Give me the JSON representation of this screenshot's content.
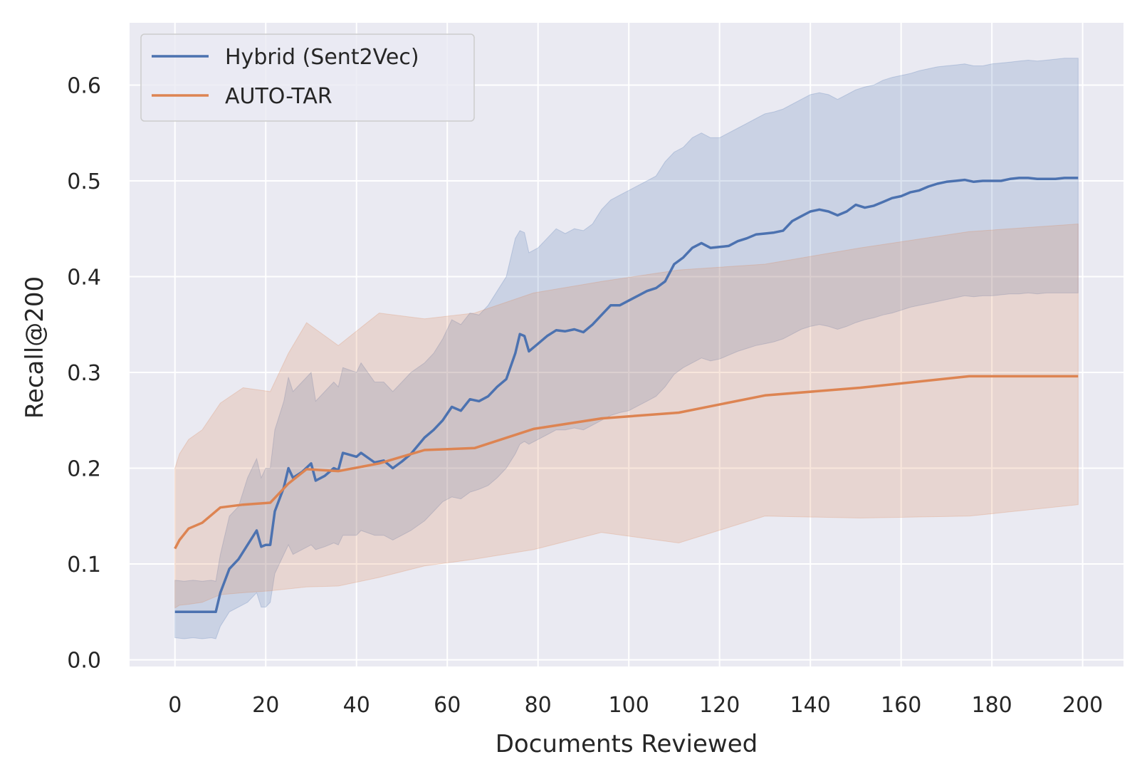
{
  "chart_data": {
    "type": "line",
    "title": "",
    "xlabel": "Documents Reviewed",
    "ylabel": "Recall@200",
    "xlim": [
      -10,
      209
    ],
    "ylim": [
      -0.007,
      0.665
    ],
    "x_ticks": [
      0,
      20,
      40,
      60,
      80,
      100,
      120,
      140,
      160,
      180,
      200
    ],
    "y_ticks": [
      0.0,
      0.1,
      0.2,
      0.3,
      0.4,
      0.5,
      0.6
    ],
    "x_tick_labels": [
      "0",
      "20",
      "40",
      "60",
      "80",
      "100",
      "120",
      "140",
      "160",
      "180",
      "200"
    ],
    "y_tick_labels": [
      "0.0",
      "0.1",
      "0.2",
      "0.3",
      "0.4",
      "0.5",
      "0.6"
    ],
    "grid": true,
    "legend_position": "top-left",
    "series": [
      {
        "name": "Hybrid (Sent2Vec)",
        "color": "#4c72b0",
        "band_opacity": 0.2,
        "x": [
          0,
          2,
          4,
          6,
          8,
          9,
          10,
          12,
          14,
          16,
          18,
          19,
          20,
          21,
          22,
          24,
          25,
          26,
          28,
          30,
          31,
          33,
          35,
          36,
          37,
          40,
          41,
          44,
          46,
          48,
          50,
          52,
          55,
          57,
          59,
          61,
          63,
          65,
          67,
          69,
          71,
          73,
          75,
          76,
          77,
          78,
          80,
          82,
          84,
          86,
          88,
          90,
          92,
          94,
          96,
          98,
          100,
          102,
          104,
          106,
          108,
          110,
          112,
          114,
          116,
          118,
          120,
          122,
          124,
          126,
          128,
          130,
          132,
          134,
          136,
          138,
          140,
          142,
          144,
          146,
          148,
          150,
          152,
          154,
          156,
          158,
          160,
          162,
          164,
          166,
          168,
          170,
          172,
          174,
          176,
          178,
          180,
          182,
          184,
          186,
          188,
          190,
          192,
          194,
          196,
          199
        ],
        "mean": [
          0.05,
          0.05,
          0.05,
          0.05,
          0.05,
          0.05,
          0.07,
          0.095,
          0.105,
          0.12,
          0.135,
          0.118,
          0.12,
          0.12,
          0.155,
          0.18,
          0.2,
          0.19,
          0.196,
          0.205,
          0.187,
          0.192,
          0.2,
          0.198,
          0.216,
          0.212,
          0.216,
          0.206,
          0.208,
          0.2,
          0.207,
          0.215,
          0.232,
          0.24,
          0.25,
          0.264,
          0.26,
          0.272,
          0.27,
          0.275,
          0.285,
          0.293,
          0.32,
          0.34,
          0.338,
          0.322,
          0.33,
          0.338,
          0.344,
          0.343,
          0.345,
          0.342,
          0.35,
          0.36,
          0.37,
          0.37,
          0.375,
          0.38,
          0.385,
          0.388,
          0.395,
          0.413,
          0.42,
          0.43,
          0.435,
          0.43,
          0.431,
          0.432,
          0.437,
          0.44,
          0.444,
          0.445,
          0.446,
          0.448,
          0.458,
          0.463,
          0.468,
          0.47,
          0.468,
          0.464,
          0.468,
          0.475,
          0.472,
          0.474,
          0.478,
          0.482,
          0.484,
          0.488,
          0.49,
          0.494,
          0.497,
          0.499,
          0.5,
          0.501,
          0.499,
          0.5,
          0.5,
          0.5,
          0.502,
          0.503,
          0.503,
          0.502,
          0.502,
          0.502,
          0.503,
          0.503
        ],
        "upper": [
          0.083,
          0.082,
          0.083,
          0.082,
          0.083,
          0.082,
          0.11,
          0.15,
          0.16,
          0.19,
          0.21,
          0.19,
          0.2,
          0.2,
          0.24,
          0.27,
          0.295,
          0.28,
          0.29,
          0.3,
          0.27,
          0.28,
          0.29,
          0.285,
          0.305,
          0.3,
          0.31,
          0.29,
          0.29,
          0.28,
          0.29,
          0.3,
          0.31,
          0.32,
          0.335,
          0.355,
          0.35,
          0.362,
          0.36,
          0.37,
          0.385,
          0.4,
          0.44,
          0.448,
          0.446,
          0.425,
          0.43,
          0.44,
          0.45,
          0.445,
          0.45,
          0.448,
          0.455,
          0.47,
          0.48,
          0.485,
          0.49,
          0.495,
          0.5,
          0.505,
          0.52,
          0.53,
          0.535,
          0.545,
          0.55,
          0.545,
          0.545,
          0.55,
          0.555,
          0.56,
          0.565,
          0.57,
          0.572,
          0.575,
          0.58,
          0.585,
          0.59,
          0.592,
          0.59,
          0.585,
          0.59,
          0.595,
          0.598,
          0.6,
          0.605,
          0.608,
          0.61,
          0.612,
          0.615,
          0.617,
          0.619,
          0.62,
          0.621,
          0.622,
          0.62,
          0.62,
          0.622,
          0.623,
          0.624,
          0.625,
          0.626,
          0.625,
          0.626,
          0.627,
          0.628,
          0.628
        ],
        "lower": [
          0.023,
          0.022,
          0.023,
          0.022,
          0.023,
          0.022,
          0.035,
          0.05,
          0.055,
          0.06,
          0.07,
          0.055,
          0.055,
          0.06,
          0.09,
          0.11,
          0.12,
          0.11,
          0.115,
          0.12,
          0.115,
          0.118,
          0.122,
          0.12,
          0.13,
          0.13,
          0.135,
          0.13,
          0.13,
          0.125,
          0.13,
          0.135,
          0.145,
          0.155,
          0.165,
          0.17,
          0.168,
          0.175,
          0.178,
          0.182,
          0.19,
          0.2,
          0.215,
          0.225,
          0.228,
          0.225,
          0.23,
          0.235,
          0.24,
          0.24,
          0.242,
          0.24,
          0.245,
          0.25,
          0.255,
          0.258,
          0.26,
          0.265,
          0.27,
          0.275,
          0.285,
          0.298,
          0.305,
          0.31,
          0.315,
          0.312,
          0.314,
          0.318,
          0.322,
          0.325,
          0.328,
          0.33,
          0.332,
          0.335,
          0.34,
          0.345,
          0.348,
          0.35,
          0.348,
          0.345,
          0.348,
          0.352,
          0.355,
          0.357,
          0.36,
          0.362,
          0.365,
          0.368,
          0.37,
          0.372,
          0.374,
          0.376,
          0.378,
          0.38,
          0.379,
          0.38,
          0.38,
          0.381,
          0.382,
          0.382,
          0.383,
          0.382,
          0.383,
          0.383,
          0.383,
          0.383
        ]
      },
      {
        "name": "AUTO-TAR",
        "color": "#dd8452",
        "band_opacity": 0.2,
        "x": [
          0,
          1,
          3,
          6,
          10,
          15,
          21,
          25,
          29,
          36,
          45,
          55,
          66,
          79,
          94,
          111,
          130,
          151,
          175,
          199
        ],
        "mean": [
          0.116,
          0.125,
          0.137,
          0.143,
          0.159,
          0.162,
          0.164,
          0.184,
          0.199,
          0.197,
          0.205,
          0.219,
          0.221,
          0.241,
          0.252,
          0.258,
          0.276,
          0.284,
          0.296,
          0.296
        ],
        "upper": [
          0.2,
          0.215,
          0.23,
          0.24,
          0.268,
          0.284,
          0.28,
          0.32,
          0.352,
          0.328,
          0.362,
          0.356,
          0.362,
          0.383,
          0.395,
          0.407,
          0.413,
          0.43,
          0.447,
          0.455
        ],
        "lower": [
          0.054,
          0.057,
          0.058,
          0.06,
          0.068,
          0.07,
          0.072,
          0.074,
          0.076,
          0.077,
          0.086,
          0.098,
          0.105,
          0.115,
          0.133,
          0.122,
          0.15,
          0.148,
          0.15,
          0.162
        ]
      }
    ]
  }
}
